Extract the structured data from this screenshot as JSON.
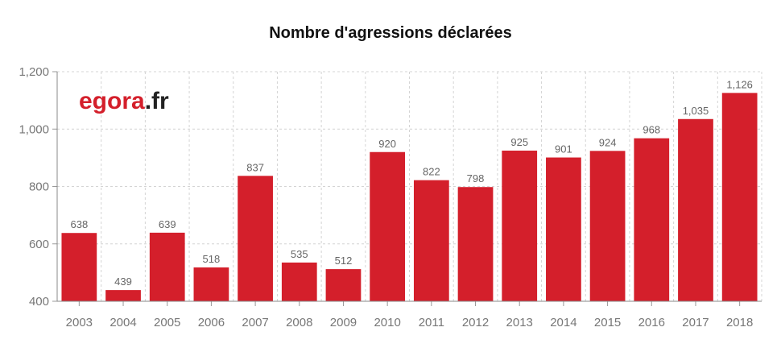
{
  "chart_data": {
    "type": "bar",
    "title": "Nombre d'agressions déclarées",
    "xlabel": "",
    "ylabel": "",
    "categories": [
      "2003",
      "2004",
      "2005",
      "2006",
      "2007",
      "2008",
      "2009",
      "2010",
      "2011",
      "2012",
      "2013",
      "2014",
      "2015",
      "2016",
      "2017",
      "2018"
    ],
    "values": [
      638,
      439,
      639,
      518,
      837,
      535,
      512,
      920,
      822,
      798,
      925,
      901,
      924,
      968,
      1035,
      1126
    ],
    "value_labels": [
      "638",
      "439",
      "639",
      "518",
      "837",
      "535",
      "512",
      "920",
      "822",
      "798",
      "925",
      "901",
      "924",
      "968",
      "1,035",
      "1,126"
    ],
    "ylim": [
      400,
      1200
    ],
    "yticks": [
      400,
      600,
      800,
      1000,
      1200
    ],
    "ytick_labels": [
      "400",
      "600",
      "800",
      "1,000",
      "1,200"
    ],
    "grid": true,
    "bar_color": "#d41f2b"
  },
  "logo": {
    "part1": "egora",
    "part2": ".fr",
    "color1": "#d41f2b",
    "color2": "#222222"
  }
}
